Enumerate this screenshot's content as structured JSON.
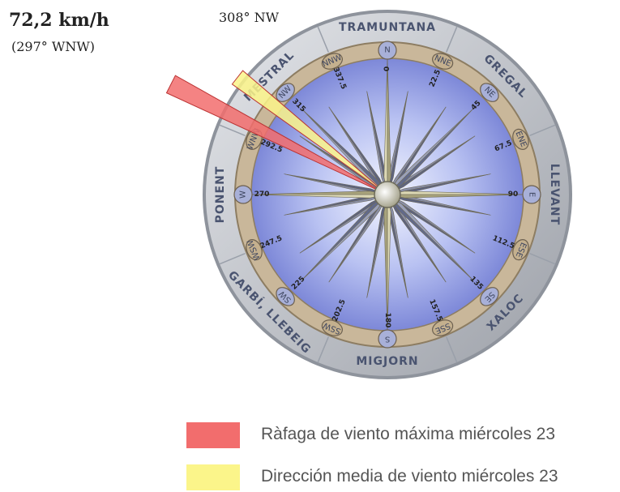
{
  "wind_speed": "72,2 km/h",
  "gust_direction": "(297° WNW)",
  "average_direction": "308° NW",
  "gust_angle_deg": 297,
  "average_angle_deg": 308,
  "wind_names": [
    {
      "label": "TRAMUNTANA",
      "angle": 0
    },
    {
      "label": "GREGAL",
      "angle": 45
    },
    {
      "label": "LLEVANT",
      "angle": 90
    },
    {
      "label": "XALOC",
      "angle": 135
    },
    {
      "label": "MIGJORN",
      "angle": 180
    },
    {
      "label": "GARBÍ, LLEBEIG",
      "angle": 225
    },
    {
      "label": "PONENT",
      "angle": 270
    },
    {
      "label": "MESTRAL",
      "angle": 315
    }
  ],
  "points": [
    "N",
    "NNE",
    "NE",
    "ENE",
    "E",
    "ESE",
    "SE",
    "SSE",
    "S",
    "SSW",
    "SW",
    "WSW",
    "W",
    "WNW",
    "NW",
    "NNW"
  ],
  "degrees": [
    "0",
    "22.5",
    "45",
    "67.5",
    "90",
    "112.5",
    "135",
    "157.5",
    "180",
    "202.5",
    "225",
    "247.5",
    "270",
    "292.5",
    "315",
    "337.5"
  ],
  "legend": [
    {
      "label": "Ràfaga de viento máxima miércoles 23",
      "color": "#f26d6d"
    },
    {
      "label": "Dirección media de viento miércoles 23",
      "color": "#fbf58a"
    }
  ]
}
